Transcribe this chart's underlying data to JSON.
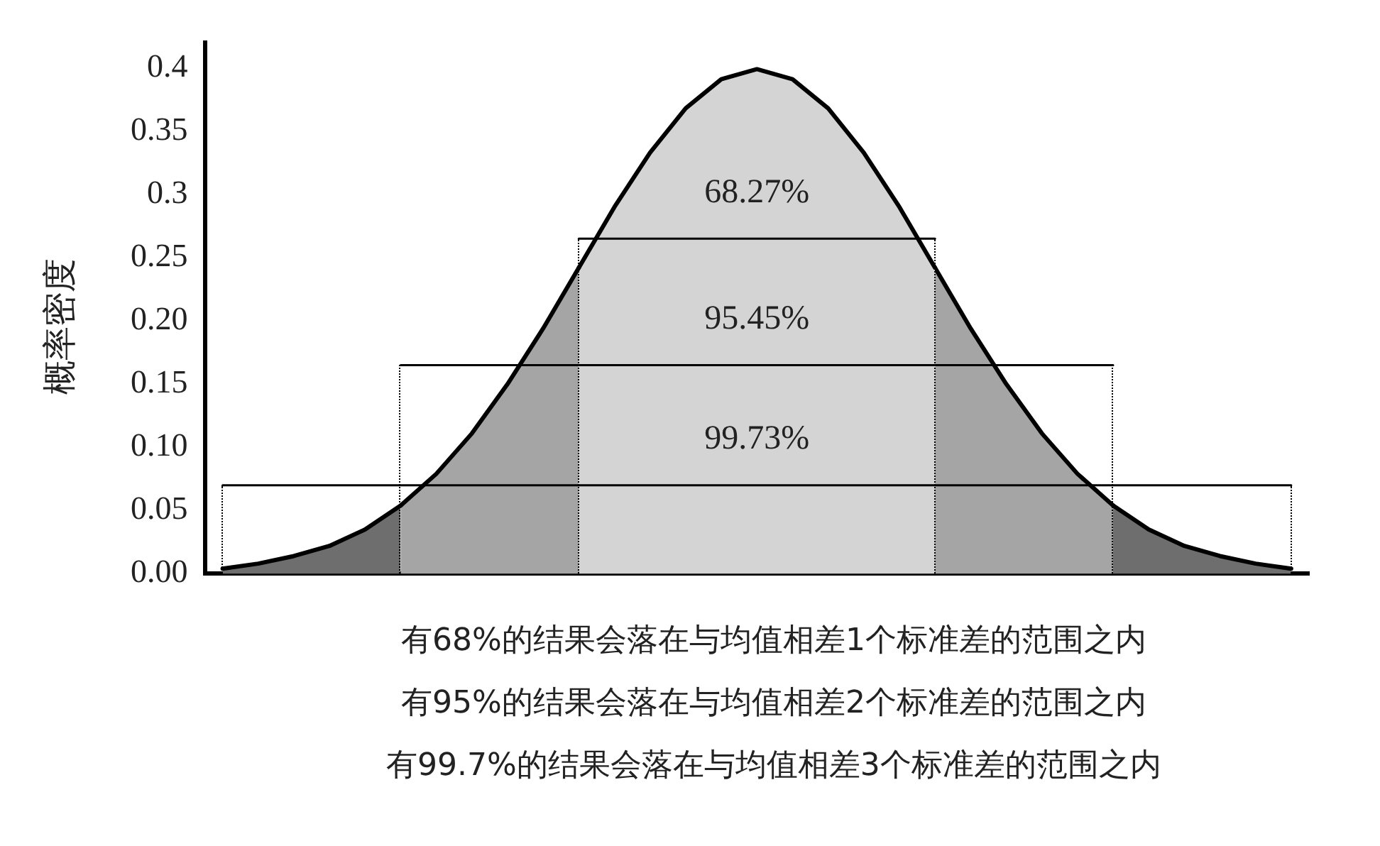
{
  "chart_data": {
    "type": "area",
    "ylabel": "概率密度",
    "ylim": [
      0,
      0.42
    ],
    "categories": [
      null,
      null,
      null,
      null,
      null,
      null,
      null,
      null,
      null,
      null,
      null,
      null,
      null,
      null,
      null,
      null,
      null,
      null,
      null,
      null,
      null,
      null,
      null,
      null,
      null,
      null,
      null,
      null,
      null,
      null,
      null
    ],
    "yticks": [
      {
        "value": 0,
        "label": "0.00"
      },
      {
        "value": 0.05,
        "label": "0.05"
      },
      {
        "value": 0.1,
        "label": "0.10"
      },
      {
        "value": 0.15,
        "label": "0.15"
      },
      {
        "value": 0.2,
        "label": "0.20"
      },
      {
        "value": 0.25,
        "label": "0.25"
      },
      {
        "value": 0.3,
        "label": "0.3"
      },
      {
        "value": 0.35,
        "label": "0.35"
      },
      {
        "value": 0.4,
        "label": "0.4"
      }
    ],
    "tick_labels": "y",
    "grid": false,
    "legend": false,
    "marker": "none",
    "series": [
      {
        "color": "#6e6e6e",
        "values": [
          0.004,
          0.008,
          0.014,
          0.022,
          0.035,
          0.054,
          null,
          null,
          null,
          null,
          null,
          null,
          null,
          null,
          null,
          null,
          null,
          null,
          null,
          null,
          null,
          null,
          null,
          null,
          null,
          null,
          null,
          null,
          null,
          null,
          null
        ]
      },
      {
        "color": "#a5a5a5",
        "values": [
          null,
          null,
          null,
          null,
          null,
          0.054,
          0.079,
          0.111,
          0.15,
          0.194,
          0.242,
          null,
          null,
          null,
          null,
          null,
          null,
          null,
          null,
          null,
          null,
          null,
          null,
          null,
          null,
          null,
          null,
          null,
          null,
          null,
          null
        ]
      },
      {
        "color": "#d4d4d4",
        "values": [
          null,
          null,
          null,
          null,
          null,
          null,
          null,
          null,
          null,
          null,
          0.242,
          0.29,
          0.333,
          0.368,
          0.391,
          0.399,
          0.391,
          0.368,
          0.333,
          0.29,
          0.242,
          null,
          null,
          null,
          null,
          null,
          null,
          null,
          null,
          null,
          null
        ]
      },
      {
        "color": "#a5a5a5",
        "values": [
          null,
          null,
          null,
          null,
          null,
          null,
          null,
          null,
          null,
          null,
          null,
          null,
          null,
          null,
          null,
          null,
          null,
          null,
          null,
          null,
          0.242,
          0.194,
          0.15,
          0.111,
          0.079,
          0.054,
          null,
          null,
          null,
          null,
          null
        ]
      },
      {
        "color": "#6e6e6e",
        "values": [
          null,
          null,
          null,
          null,
          null,
          null,
          null,
          null,
          null,
          null,
          null,
          null,
          null,
          null,
          null,
          null,
          null,
          null,
          null,
          null,
          null,
          null,
          null,
          null,
          null,
          0.054,
          0.035,
          0.022,
          0.014,
          0.008,
          0.004
        ]
      },
      {
        "type": "line",
        "name": "68.27%",
        "color": "#000000",
        "values": [
          null,
          null,
          null,
          null,
          null,
          null,
          null,
          null,
          null,
          null,
          0.265,
          0.265,
          0.265,
          0.265,
          0.265,
          0.265,
          0.265,
          0.265,
          0.265,
          0.265,
          0.265,
          null,
          null,
          null,
          null,
          null,
          null,
          null,
          null,
          null,
          null
        ]
      },
      {
        "type": "line",
        "name": "95.45%",
        "color": "#000000",
        "values": [
          null,
          null,
          null,
          null,
          null,
          0.165,
          0.165,
          0.165,
          0.165,
          0.165,
          0.165,
          0.165,
          0.165,
          0.165,
          0.165,
          0.165,
          0.165,
          0.165,
          0.165,
          0.165,
          0.165,
          0.165,
          0.165,
          0.165,
          0.165,
          0.165,
          null,
          null,
          null,
          null,
          null
        ]
      },
      {
        "type": "line",
        "name": "99.73%",
        "color": "#000000",
        "values": [
          0.07,
          0.07,
          0.07,
          0.07,
          0.07,
          0.07,
          0.07,
          0.07,
          0.07,
          0.07,
          0.07,
          0.07,
          0.07,
          0.07,
          0.07,
          0.07,
          0.07,
          0.07,
          0.07,
          0.07,
          0.07,
          0.07,
          0.07,
          0.07,
          0.07,
          0.07,
          0.07,
          0.07,
          0.07,
          0.07,
          0.07
        ]
      }
    ],
    "annotations": [
      "有68%的结果会落在与均值相差1个标准差的范围之内",
      "有95%的结果会落在与均值相差2个标准差的范围之内",
      "有99.7%的结果会落在与均值相差3个标准差的范围之内"
    ]
  }
}
